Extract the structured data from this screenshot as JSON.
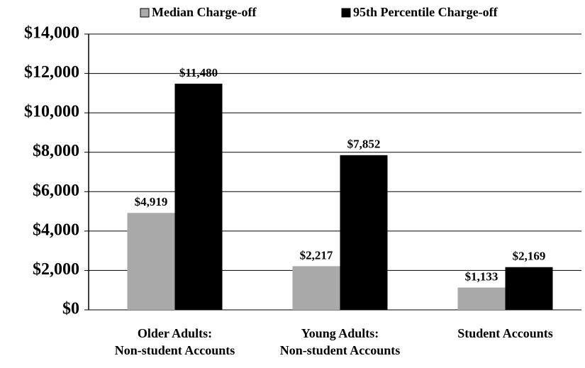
{
  "chart_data": {
    "type": "bar",
    "categories": [
      "Older Adults:\nNon-student Accounts",
      "Young Adults:\nNon-student Accounts",
      "Student Accounts"
    ],
    "series": [
      {
        "name": "Median Charge-off",
        "color": "#a9a9a9",
        "values": [
          4919,
          2217,
          1133
        ],
        "value_labels": [
          "$4,919",
          "$2,217",
          "$1,133"
        ]
      },
      {
        "name": "95th Percentile Charge-off",
        "color": "#000000",
        "values": [
          11480,
          7852,
          2169
        ],
        "value_labels": [
          "$11,480",
          "$7,852",
          "$2,169"
        ]
      }
    ],
    "ylim": [
      0,
      14000
    ],
    "yticks": [
      {
        "value": 0,
        "label": "$0"
      },
      {
        "value": 2000,
        "label": "$2,000"
      },
      {
        "value": 4000,
        "label": "$4,000"
      },
      {
        "value": 6000,
        "label": "$6,000"
      },
      {
        "value": 8000,
        "label": "$8,000"
      },
      {
        "value": 10000,
        "label": "$10,000"
      },
      {
        "value": 12000,
        "label": "$12,000"
      },
      {
        "value": 14000,
        "label": "$14,000"
      }
    ],
    "grid": true,
    "legend": "top"
  }
}
